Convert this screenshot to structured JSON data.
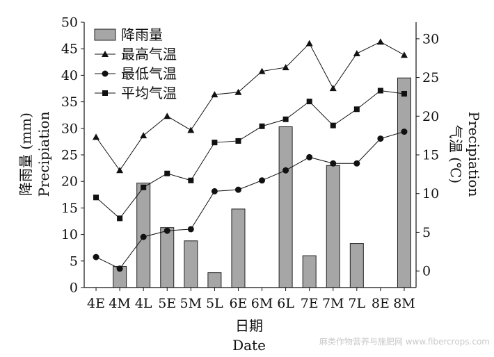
{
  "chart_data": {
    "type": "bar+line",
    "categories": [
      "4E",
      "4M",
      "4L",
      "5E",
      "5M",
      "5L",
      "6E",
      "6M",
      "6L",
      "7E",
      "7M",
      "7L",
      "8E",
      "8M"
    ],
    "bars": {
      "name": "降雨量",
      "values": [
        0,
        4,
        19.7,
        11.3,
        8.8,
        2.8,
        14.8,
        0,
        30.3,
        6,
        23,
        8.3,
        0,
        39.5
      ],
      "color": "#a6a6a6"
    },
    "series": [
      {
        "name": "最高气温",
        "marker": "triangle",
        "values": [
          17.3,
          13,
          17.5,
          20,
          18.2,
          22.8,
          23.1,
          25.8,
          26.3,
          29.4,
          23.6,
          28.1,
          29.6,
          27.9
        ]
      },
      {
        "name": "最低气温",
        "marker": "circle",
        "values": [
          1.8,
          0.3,
          4.4,
          5.2,
          5.4,
          10.3,
          10.5,
          11.7,
          13,
          14.7,
          13.9,
          13.9,
          17.1,
          18
        ]
      },
      {
        "name": "平均气温",
        "marker": "square",
        "values": [
          9.5,
          6.8,
          10.8,
          12.6,
          11.7,
          16.6,
          16.8,
          18.7,
          19.6,
          21.9,
          18.8,
          20.9,
          23.3,
          22.9
        ]
      }
    ],
    "left_axis": {
      "label_cn": "降雨量 (mm)",
      "label_en": "Precipiation",
      "ylim": [
        0,
        50
      ],
      "ticks": [
        "0",
        "5",
        "10",
        "15",
        "20",
        "25",
        "30",
        "35",
        "40",
        "45",
        "50"
      ]
    },
    "right_axis": {
      "label_cn": "气温 (℃)",
      "label_en": "Precipiation",
      "ylim": [
        -2.14,
        32.14
      ],
      "ticks": [
        "0",
        "5",
        "10",
        "15",
        "20",
        "25",
        "30"
      ]
    },
    "xlabel_cn": "日期",
    "xlabel_en": "Date",
    "legend": {
      "placement": "top-left",
      "entries": [
        "降雨量",
        "最高气温",
        "最低气温",
        "平均气温"
      ]
    },
    "grid": false
  },
  "watermark": "麻类作物营养与施肥网 www.fibercrops.com"
}
